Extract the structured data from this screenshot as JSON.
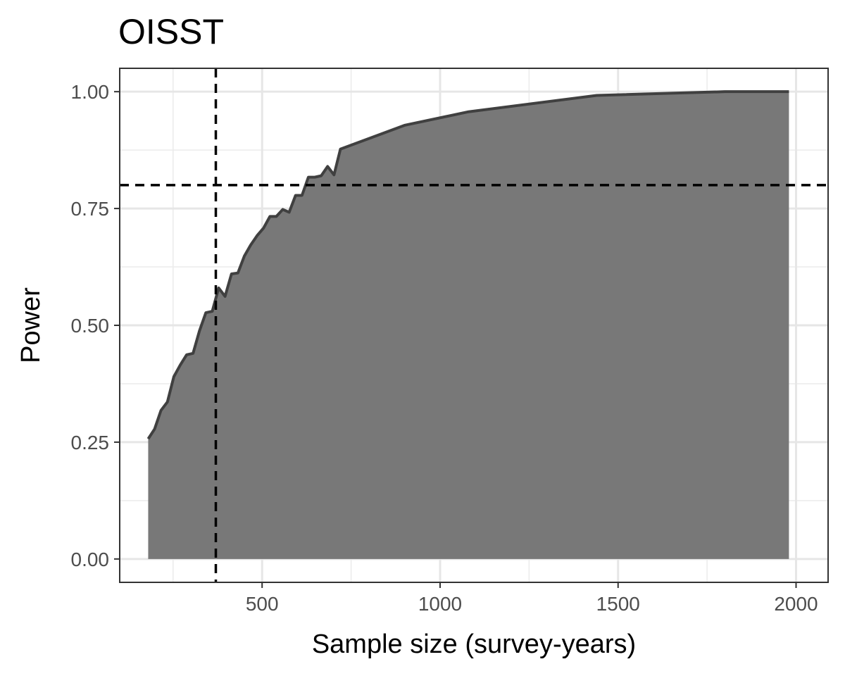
{
  "chart_data": {
    "type": "area",
    "title": "OISST",
    "xlabel": "Sample size (survey-years)",
    "ylabel": "Power",
    "xlim": [
      100,
      2090
    ],
    "ylim": [
      -0.05,
      1.05
    ],
    "x_ticks": [
      500,
      1000,
      1500,
      2000
    ],
    "x_tick_labels": [
      "500",
      "1000",
      "1500",
      "2000"
    ],
    "y_ticks": [
      0,
      0.25,
      0.5,
      0.75,
      1.0
    ],
    "y_tick_labels": [
      "0.00",
      "0.25",
      "0.50",
      "0.75",
      "1.00"
    ],
    "grid": true,
    "series": [
      {
        "x": [
          180,
          198,
          216,
          234,
          252,
          270,
          288,
          306,
          324,
          342,
          360,
          378,
          396,
          414,
          432,
          450,
          468,
          486,
          504,
          522,
          540,
          558,
          576,
          594,
          612,
          630,
          648,
          666,
          684,
          702,
          720,
          900,
          1080,
          1440,
          1800,
          1980
        ],
        "y": [
          0.257,
          0.278,
          0.318,
          0.336,
          0.39,
          0.415,
          0.437,
          0.44,
          0.488,
          0.527,
          0.53,
          0.58,
          0.562,
          0.61,
          0.612,
          0.648,
          0.672,
          0.692,
          0.708,
          0.733,
          0.733,
          0.748,
          0.742,
          0.778,
          0.778,
          0.817,
          0.817,
          0.82,
          0.84,
          0.822,
          0.877,
          0.928,
          0.957,
          0.992,
          1.0,
          1.0
        ],
        "color": "#787878",
        "line_color": "#404040"
      }
    ],
    "reference_lines": {
      "vline_x": 370,
      "hline_y": 0.8,
      "style": "dashed",
      "color": "#000000"
    }
  }
}
